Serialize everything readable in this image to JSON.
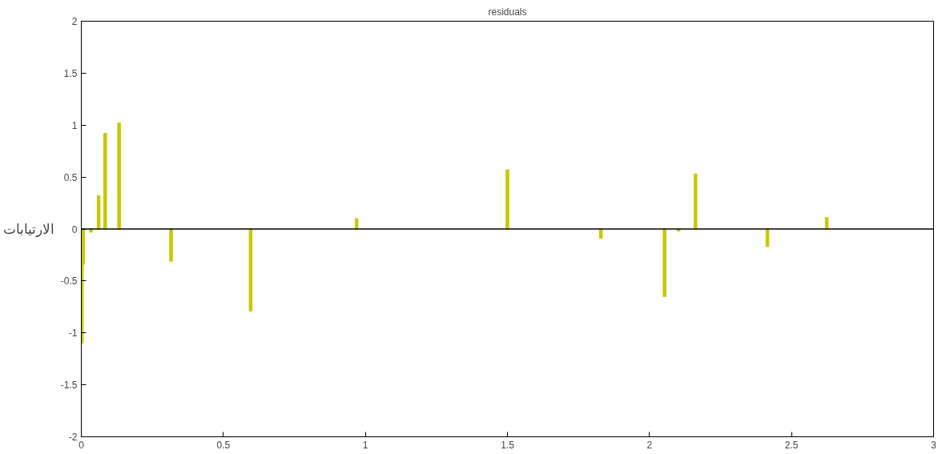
{
  "chart_data": {
    "type": "bar",
    "title": "residuals",
    "ylabel": "الارتيابات",
    "x": [
      0.002,
      0.006,
      0.034,
      0.061,
      0.084,
      0.133,
      0.316,
      0.596,
      0.969,
      1.5,
      1.829,
      2.053,
      2.103,
      2.162,
      2.415,
      2.624
    ],
    "series": [
      {
        "color": "#c8c800",
        "values": [
          -1.1,
          -0.34,
          -0.03,
          0.32,
          0.92,
          1.02,
          -0.31,
          -0.79,
          0.1,
          0.57,
          -0.09,
          -0.65,
          -0.02,
          0.53,
          -0.17,
          0.11
        ]
      }
    ],
    "xlim": [
      0,
      3
    ],
    "xticks": [
      0,
      0.5,
      1,
      1.5,
      2,
      2.5,
      3
    ],
    "ylim": [
      -2,
      2
    ],
    "yticks": [
      -2,
      -1.5,
      -1,
      -0.5,
      0,
      0.5,
      1,
      1.5,
      2
    ],
    "ref_lines": [
      {
        "axis": "y",
        "value": 0,
        "color": "#000000"
      }
    ],
    "grid": false
  }
}
